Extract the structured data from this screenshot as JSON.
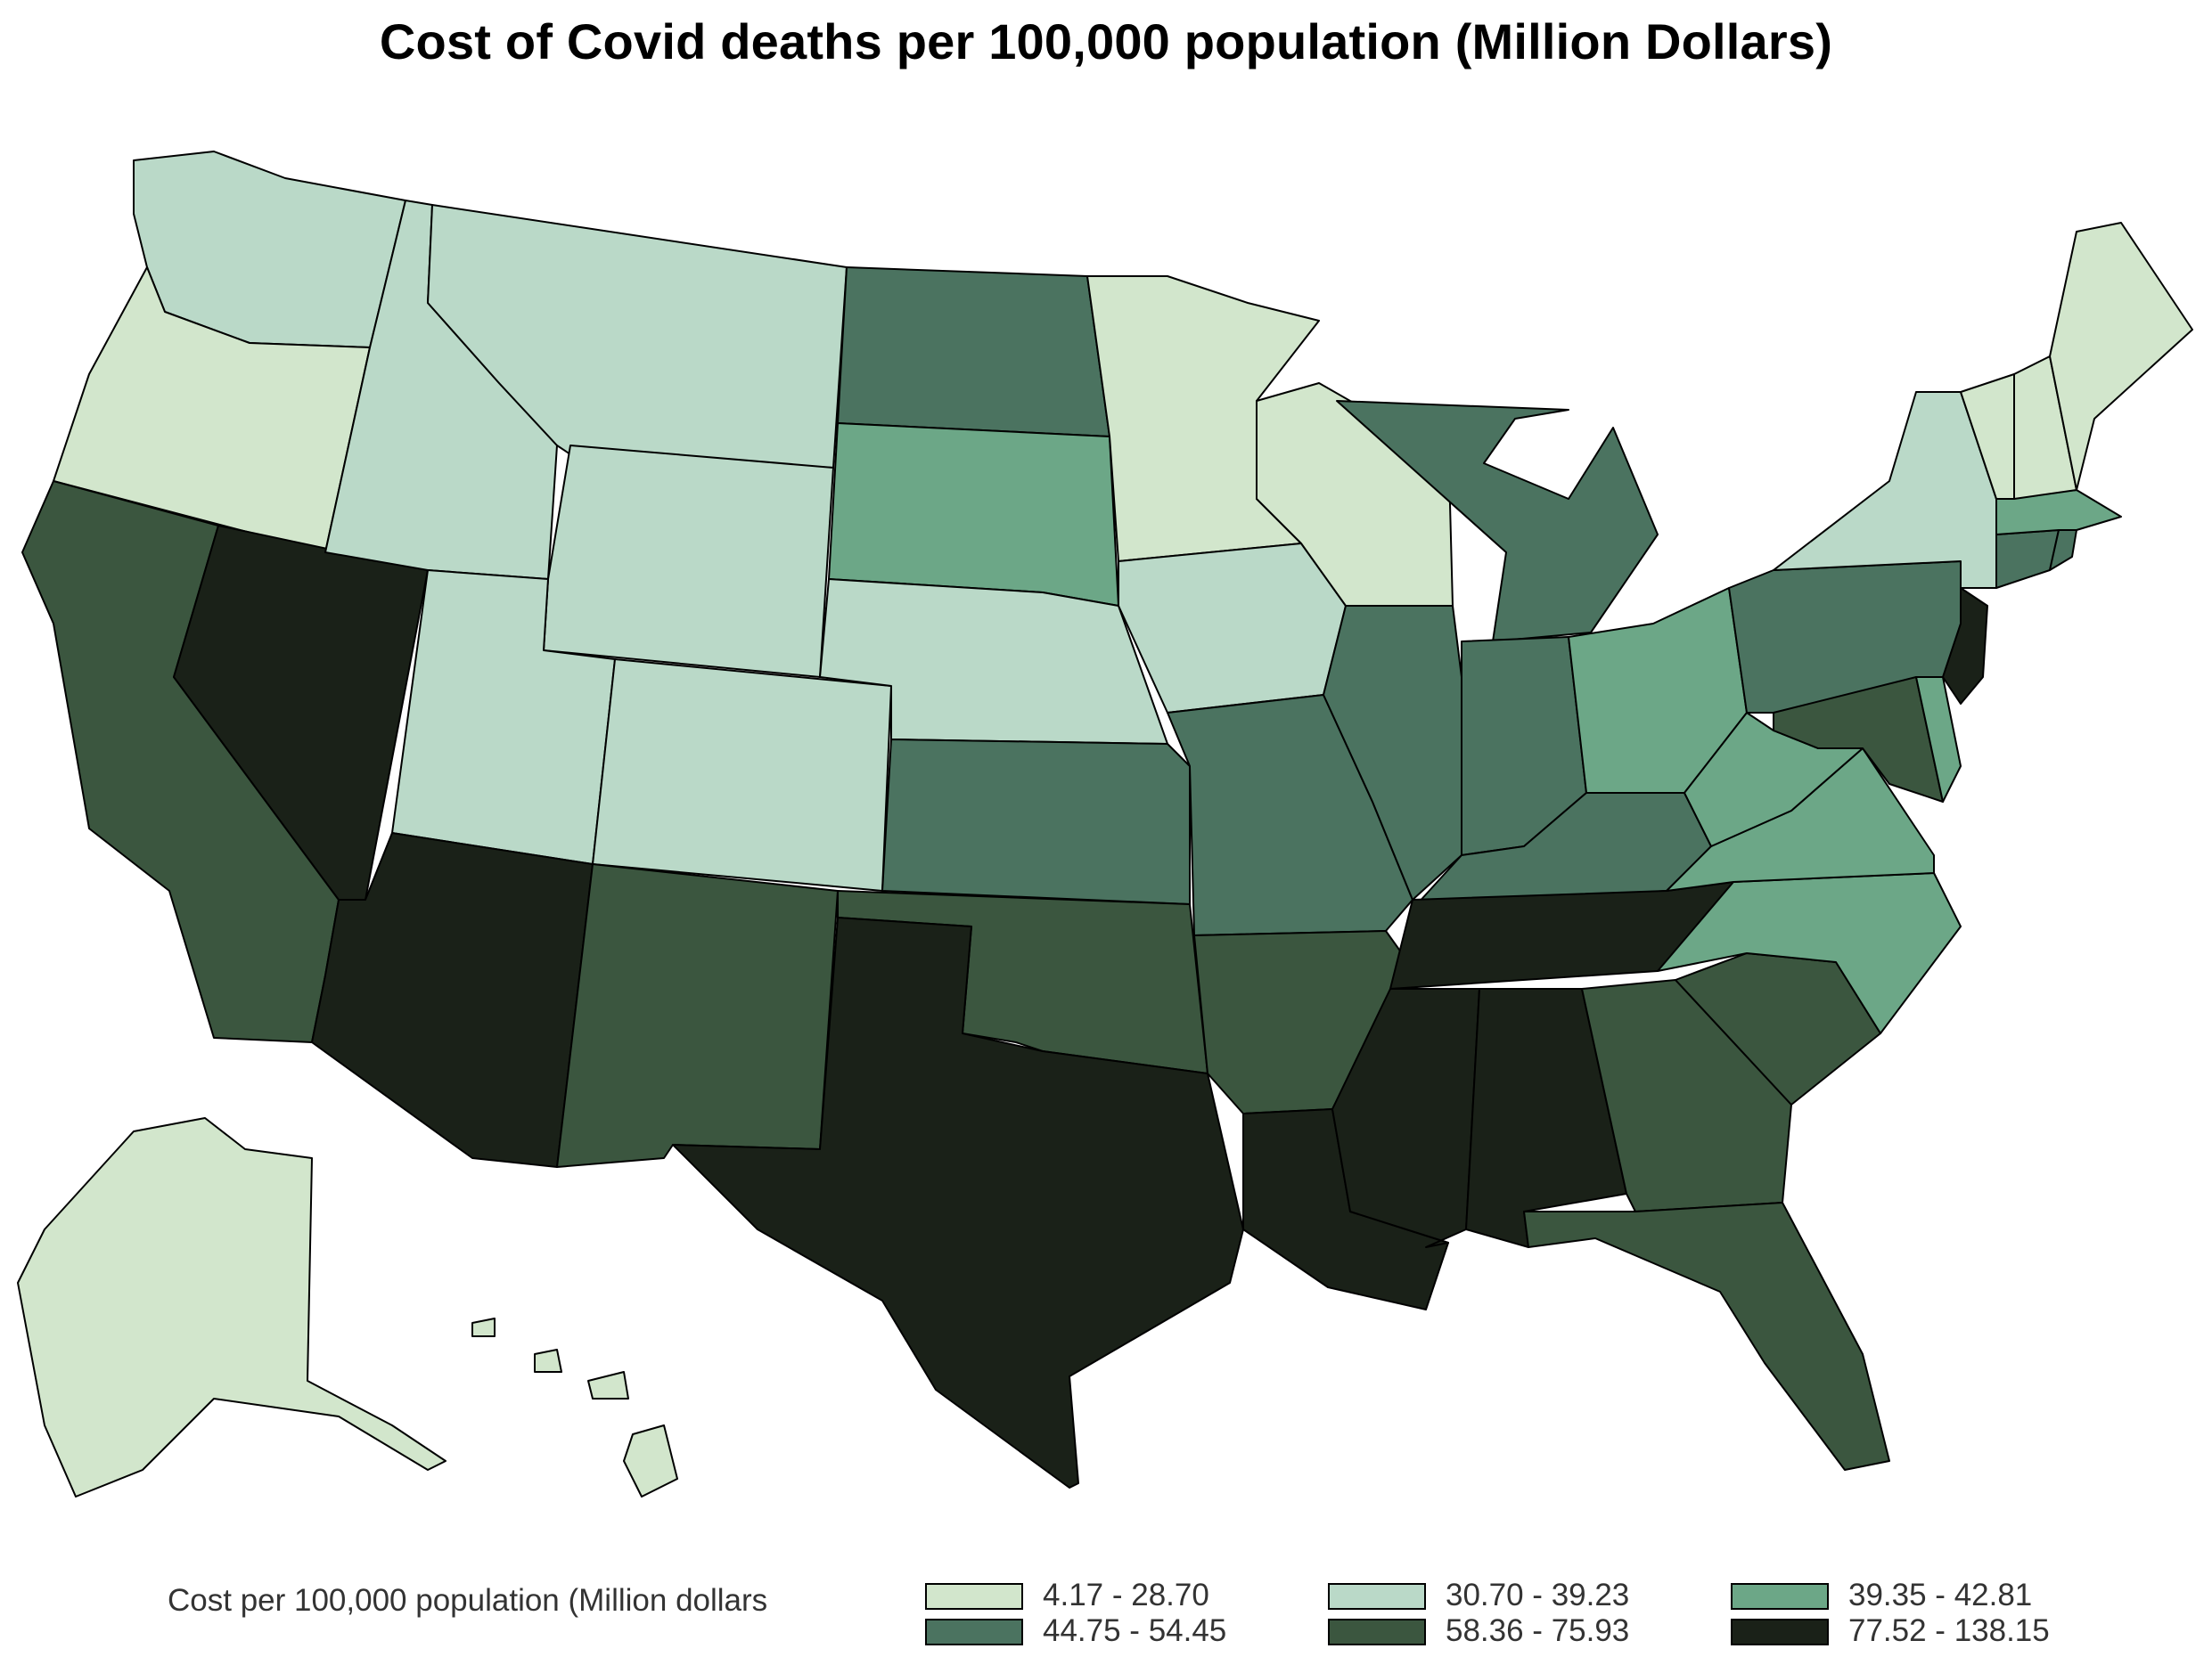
{
  "title": "Cost of Covid deaths per 100,000 population (Million Dollars)",
  "legend": {
    "title": "Cost per 100,000 population (Million dollars",
    "bins": [
      {
        "label": "4.17 - 28.70",
        "color": "#d2e6cc"
      },
      {
        "label": "30.70 - 39.23",
        "color": "#bad9c8"
      },
      {
        "label": "39.35 - 42.81",
        "color": "#6ca787"
      },
      {
        "label": "44.75 - 54.45",
        "color": "#4b7360"
      },
      {
        "label": "58.36 - 75.93",
        "color": "#3b563f"
      },
      {
        "label": "77.52 - 138.15",
        "color": "#1a2118"
      }
    ]
  },
  "chart_data": {
    "type": "choropleth",
    "title": "Cost of Covid deaths per 100,000 population (Million Dollars)",
    "legend_title": "Cost per 100,000 population (Million dollars",
    "legend_position": "bottom",
    "bins": [
      "4.17 - 28.70",
      "30.70 - 39.23",
      "39.35 - 42.81",
      "44.75 - 54.45",
      "58.36 - 75.93",
      "77.52 - 138.15"
    ],
    "states": [
      {
        "state": "WA",
        "bin": 1
      },
      {
        "state": "OR",
        "bin": 0
      },
      {
        "state": "CA",
        "bin": 4
      },
      {
        "state": "NV",
        "bin": 5
      },
      {
        "state": "ID",
        "bin": 1
      },
      {
        "state": "MT",
        "bin": 1
      },
      {
        "state": "WY",
        "bin": 1
      },
      {
        "state": "UT",
        "bin": 1
      },
      {
        "state": "CO",
        "bin": 1
      },
      {
        "state": "AZ",
        "bin": 5
      },
      {
        "state": "NM",
        "bin": 4
      },
      {
        "state": "ND",
        "bin": 3
      },
      {
        "state": "SD",
        "bin": 2
      },
      {
        "state": "NE",
        "bin": 1
      },
      {
        "state": "KS",
        "bin": 3
      },
      {
        "state": "OK",
        "bin": 4
      },
      {
        "state": "TX",
        "bin": 5
      },
      {
        "state": "MN",
        "bin": 0
      },
      {
        "state": "IA",
        "bin": 1
      },
      {
        "state": "MO",
        "bin": 3
      },
      {
        "state": "AR",
        "bin": 4
      },
      {
        "state": "LA",
        "bin": 5
      },
      {
        "state": "WI",
        "bin": 0
      },
      {
        "state": "IL",
        "bin": 3
      },
      {
        "state": "MI",
        "bin": 3
      },
      {
        "state": "IN",
        "bin": 3
      },
      {
        "state": "OH",
        "bin": 2
      },
      {
        "state": "KY",
        "bin": 3
      },
      {
        "state": "TN",
        "bin": 5
      },
      {
        "state": "MS",
        "bin": 5
      },
      {
        "state": "AL",
        "bin": 5
      },
      {
        "state": "GA",
        "bin": 4
      },
      {
        "state": "FL",
        "bin": 4
      },
      {
        "state": "SC",
        "bin": 4
      },
      {
        "state": "NC",
        "bin": 2
      },
      {
        "state": "VA",
        "bin": 2
      },
      {
        "state": "WV",
        "bin": 2
      },
      {
        "state": "PA",
        "bin": 3
      },
      {
        "state": "NY",
        "bin": 1
      },
      {
        "state": "NJ",
        "bin": 5
      },
      {
        "state": "DE",
        "bin": 2
      },
      {
        "state": "MD",
        "bin": 4
      },
      {
        "state": "CT",
        "bin": 3
      },
      {
        "state": "RI",
        "bin": 3
      },
      {
        "state": "MA",
        "bin": 2
      },
      {
        "state": "VT",
        "bin": 0
      },
      {
        "state": "NH",
        "bin": 0
      },
      {
        "state": "ME",
        "bin": 0
      },
      {
        "state": "AK",
        "bin": 0
      },
      {
        "state": "HI",
        "bin": 0
      }
    ]
  }
}
